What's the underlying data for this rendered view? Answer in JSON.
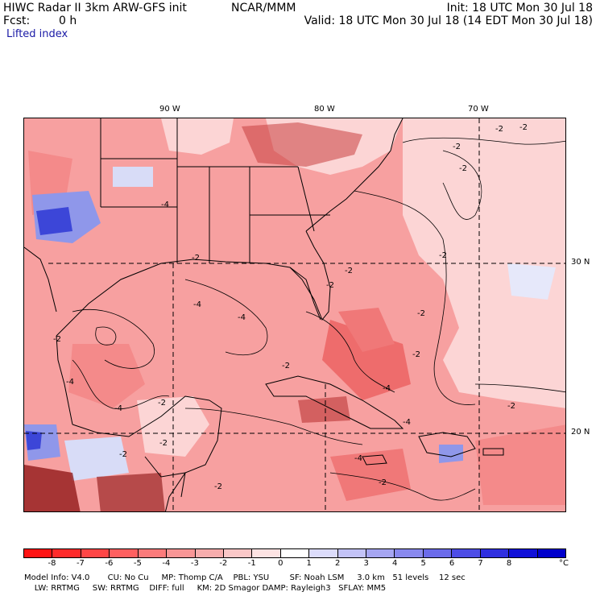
{
  "header": {
    "title": "HIWC Radar II 3km ARW-GFS init",
    "org": "NCAR/MMM",
    "init": "Init: 18 UTC Mon 30 Jul 18",
    "fcst_label": "Fcst:",
    "fcst_value": "0 h",
    "valid": "Valid: 18 UTC Mon 30 Jul 18 (14 EDT Mon 30 Jul 18)",
    "field": "Lifted index"
  },
  "map": {
    "lon_labels": [
      "90 W",
      "80 W",
      "70 W"
    ],
    "lat_labels": [
      "30 N",
      "20 N"
    ],
    "contour_label": "-2",
    "contour_label_4": "-4",
    "colors": {
      "base": "#f7a0a0",
      "light": "#fcd5d5",
      "mid": "#f48a8a",
      "deep": "#ee6c6c",
      "dark": "#8b1010",
      "blue_light": "#d8dcf7",
      "blue": "#8f97ea",
      "blue_dark": "#3c46d8"
    }
  },
  "colorbar": {
    "ticks": [
      "-8",
      "-7",
      "-6",
      "-5",
      "-4",
      "-3",
      "-2",
      "-1",
      "0",
      "1",
      "2",
      "3",
      "4",
      "5",
      "6",
      "7",
      "8"
    ],
    "unit": "°C",
    "colors": [
      "#ff1414",
      "#ff2b2b",
      "#ff4646",
      "#ff6060",
      "#fb7b7b",
      "#f89696",
      "#f7adad",
      "#fac7c7",
      "#fde3e3",
      "#ffffff",
      "#dcdcfb",
      "#c3c3f7",
      "#a6a6f2",
      "#8989ee",
      "#6b6bea",
      "#4d4de6",
      "#2f2fe0",
      "#1010d8",
      "#0000cc"
    ]
  },
  "model_info": {
    "line1": "Model Info: V4.0       CU: No Cu     MP: Thomp C/A    PBL: YSU        SF: Noah LSM     3.0 km   51 levels    12 sec",
    "line2": "    LW: RRTMG     SW: RRTMG    DIFF: full     KM: 2D Smagor DAMP: Rayleigh3   SFLAY: MM5"
  }
}
